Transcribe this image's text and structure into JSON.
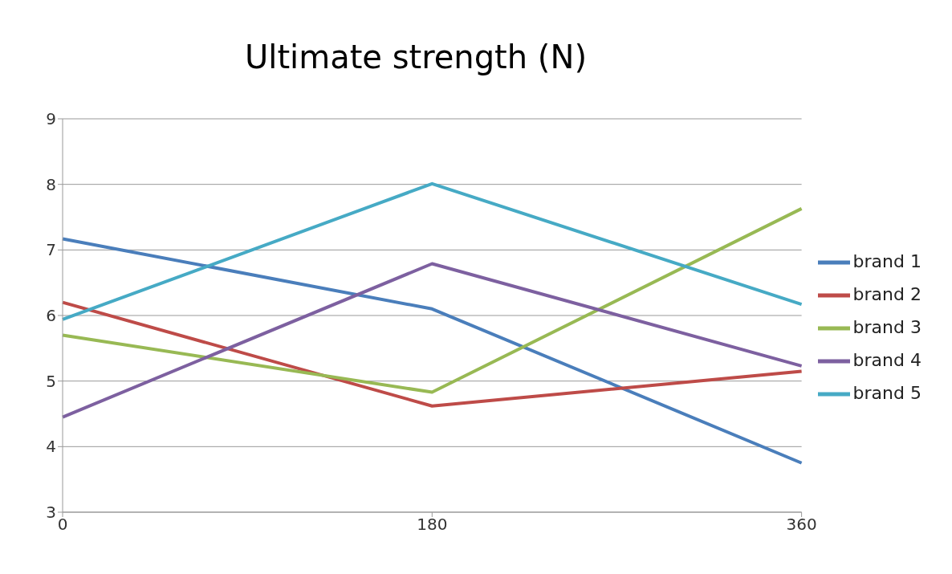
{
  "chart_data": {
    "type": "line",
    "title": "Ultimate strength (N)",
    "categories": [
      "0",
      "180",
      "360"
    ],
    "series": [
      {
        "name": "brand 1",
        "color": "#4a7ebb",
        "values": [
          7.17,
          6.1,
          3.75
        ]
      },
      {
        "name": "brand 2",
        "color": "#be4b48",
        "values": [
          6.2,
          4.62,
          5.15
        ]
      },
      {
        "name": "brand 3",
        "color": "#98b954",
        "values": [
          5.7,
          4.83,
          7.63
        ]
      },
      {
        "name": "brand 4",
        "color": "#7d60a0",
        "values": [
          4.45,
          6.79,
          5.23
        ]
      },
      {
        "name": "brand 5",
        "color": "#46aac5",
        "values": [
          5.94,
          8.01,
          6.17
        ]
      }
    ],
    "ylim": [
      3,
      9
    ],
    "yticks": [
      3,
      4,
      5,
      6,
      7,
      8,
      9
    ],
    "grid": "y",
    "legend": "right",
    "marker": "none",
    "line_style": "solid"
  }
}
